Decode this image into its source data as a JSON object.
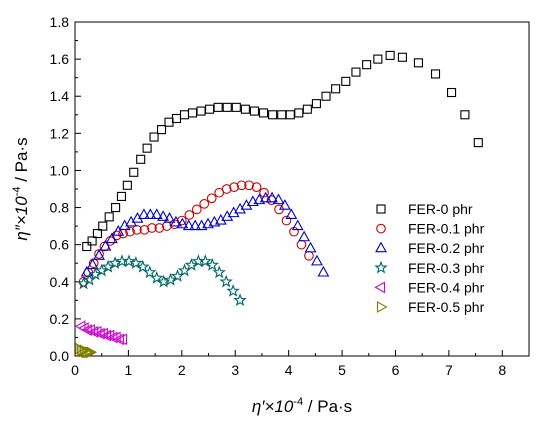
{
  "chart_data": {
    "type": "scatter",
    "xlabel": {
      "main": "η′×10",
      "sup": "-4",
      "unit": " / Pa·s"
    },
    "ylabel": {
      "main": "η″×10",
      "sup": "-4",
      "unit": " / Pa·s"
    },
    "xlim": [
      0,
      8.5
    ],
    "ylim": [
      0,
      1.8
    ],
    "xticks": [
      0,
      1,
      2,
      3,
      4,
      5,
      6,
      7,
      8
    ],
    "yticks": [
      0.0,
      0.2,
      0.4,
      0.6,
      0.8,
      1.0,
      1.2,
      1.4,
      1.6,
      1.8
    ],
    "xtick_labels": [
      "0",
      "1",
      "2",
      "3",
      "4",
      "5",
      "6",
      "7",
      "8"
    ],
    "ytick_labels": [
      "0.0",
      "0.2",
      "0.4",
      "0.6",
      "0.8",
      "1.0",
      "1.2",
      "1.4",
      "1.6",
      "1.8"
    ],
    "grid": false,
    "legend_position": "right",
    "series": [
      {
        "name": "FER-0 phr",
        "marker": "square",
        "color": "#000000",
        "points": [
          [
            0.22,
            0.59
          ],
          [
            0.32,
            0.62
          ],
          [
            0.42,
            0.66
          ],
          [
            0.52,
            0.7
          ],
          [
            0.64,
            0.75
          ],
          [
            0.76,
            0.8
          ],
          [
            0.87,
            0.86
          ],
          [
            0.98,
            0.92
          ],
          [
            1.1,
            0.99
          ],
          [
            1.23,
            1.06
          ],
          [
            1.35,
            1.12
          ],
          [
            1.48,
            1.18
          ],
          [
            1.62,
            1.22
          ],
          [
            1.76,
            1.26
          ],
          [
            1.9,
            1.28
          ],
          [
            2.05,
            1.3
          ],
          [
            2.2,
            1.31
          ],
          [
            2.36,
            1.32
          ],
          [
            2.52,
            1.33
          ],
          [
            2.68,
            1.34
          ],
          [
            2.85,
            1.34
          ],
          [
            3.02,
            1.34
          ],
          [
            3.19,
            1.33
          ],
          [
            3.36,
            1.32
          ],
          [
            3.53,
            1.31
          ],
          [
            3.7,
            1.3
          ],
          [
            3.87,
            1.3
          ],
          [
            4.03,
            1.3
          ],
          [
            4.19,
            1.31
          ],
          [
            4.35,
            1.33
          ],
          [
            4.52,
            1.36
          ],
          [
            4.7,
            1.4
          ],
          [
            4.88,
            1.44
          ],
          [
            5.07,
            1.48
          ],
          [
            5.26,
            1.53
          ],
          [
            5.46,
            1.57
          ],
          [
            5.67,
            1.6
          ],
          [
            5.9,
            1.62
          ],
          [
            6.13,
            1.61
          ],
          [
            6.43,
            1.58
          ],
          [
            6.75,
            1.52
          ],
          [
            7.05,
            1.42
          ],
          [
            7.3,
            1.3
          ],
          [
            7.55,
            1.15
          ]
        ]
      },
      {
        "name": "FER-0.1 phr",
        "marker": "circle",
        "color": "#cc0000",
        "points": [
          [
            0.16,
            0.4
          ],
          [
            0.25,
            0.45
          ],
          [
            0.35,
            0.5
          ],
          [
            0.45,
            0.55
          ],
          [
            0.55,
            0.59
          ],
          [
            0.66,
            0.62
          ],
          [
            0.78,
            0.65
          ],
          [
            0.9,
            0.66
          ],
          [
            1.03,
            0.67
          ],
          [
            1.16,
            0.68
          ],
          [
            1.3,
            0.68
          ],
          [
            1.44,
            0.69
          ],
          [
            1.58,
            0.69
          ],
          [
            1.72,
            0.7
          ],
          [
            1.86,
            0.71
          ],
          [
            2.0,
            0.73
          ],
          [
            2.14,
            0.76
          ],
          [
            2.28,
            0.79
          ],
          [
            2.42,
            0.82
          ],
          [
            2.56,
            0.85
          ],
          [
            2.7,
            0.88
          ],
          [
            2.84,
            0.9
          ],
          [
            2.98,
            0.91
          ],
          [
            3.12,
            0.92
          ],
          [
            3.26,
            0.92
          ],
          [
            3.4,
            0.91
          ],
          [
            3.54,
            0.88
          ],
          [
            3.68,
            0.84
          ],
          [
            3.82,
            0.79
          ],
          [
            3.96,
            0.73
          ],
          [
            4.1,
            0.67
          ],
          [
            4.24,
            0.6
          ],
          [
            4.38,
            0.54
          ]
        ]
      },
      {
        "name": "FER-0.2 phr",
        "marker": "triangle-up",
        "color": "#0000cc",
        "points": [
          [
            0.22,
            0.45
          ],
          [
            0.33,
            0.49
          ],
          [
            0.45,
            0.54
          ],
          [
            0.57,
            0.59
          ],
          [
            0.69,
            0.63
          ],
          [
            0.81,
            0.67
          ],
          [
            0.93,
            0.7
          ],
          [
            1.05,
            0.72
          ],
          [
            1.17,
            0.74
          ],
          [
            1.29,
            0.76
          ],
          [
            1.41,
            0.76
          ],
          [
            1.53,
            0.76
          ],
          [
            1.65,
            0.75
          ],
          [
            1.77,
            0.74
          ],
          [
            1.89,
            0.72
          ],
          [
            2.01,
            0.71
          ],
          [
            2.13,
            0.7
          ],
          [
            2.25,
            0.7
          ],
          [
            2.37,
            0.7
          ],
          [
            2.49,
            0.71
          ],
          [
            2.61,
            0.72
          ],
          [
            2.73,
            0.73
          ],
          [
            2.85,
            0.75
          ],
          [
            2.97,
            0.77
          ],
          [
            3.09,
            0.79
          ],
          [
            3.21,
            0.81
          ],
          [
            3.33,
            0.83
          ],
          [
            3.45,
            0.84
          ],
          [
            3.57,
            0.85
          ],
          [
            3.69,
            0.85
          ],
          [
            3.81,
            0.84
          ],
          [
            3.93,
            0.81
          ],
          [
            4.05,
            0.76
          ],
          [
            4.17,
            0.7
          ],
          [
            4.29,
            0.64
          ],
          [
            4.41,
            0.58
          ],
          [
            4.53,
            0.51
          ],
          [
            4.65,
            0.45
          ]
        ]
      },
      {
        "name": "FER-0.3 phr",
        "marker": "star",
        "color": "#006666",
        "points": [
          [
            0.16,
            0.39
          ],
          [
            0.27,
            0.41
          ],
          [
            0.38,
            0.44
          ],
          [
            0.5,
            0.46
          ],
          [
            0.62,
            0.48
          ],
          [
            0.75,
            0.5
          ],
          [
            0.88,
            0.51
          ],
          [
            1.01,
            0.51
          ],
          [
            1.14,
            0.5
          ],
          [
            1.27,
            0.48
          ],
          [
            1.4,
            0.45
          ],
          [
            1.53,
            0.42
          ],
          [
            1.66,
            0.4
          ],
          [
            1.79,
            0.41
          ],
          [
            1.92,
            0.43
          ],
          [
            2.05,
            0.46
          ],
          [
            2.18,
            0.49
          ],
          [
            2.31,
            0.51
          ],
          [
            2.44,
            0.51
          ],
          [
            2.57,
            0.49
          ],
          [
            2.7,
            0.45
          ],
          [
            2.83,
            0.4
          ],
          [
            2.96,
            0.35
          ],
          [
            3.09,
            0.3
          ]
        ]
      },
      {
        "name": "FER-0.4 phr",
        "marker": "triangle-left",
        "color": "#cc00cc",
        "points": [
          [
            0.12,
            0.16
          ],
          [
            0.18,
            0.15
          ],
          [
            0.24,
            0.14
          ],
          [
            0.3,
            0.14
          ],
          [
            0.36,
            0.13
          ],
          [
            0.42,
            0.13
          ],
          [
            0.48,
            0.12
          ],
          [
            0.54,
            0.12
          ],
          [
            0.6,
            0.11
          ],
          [
            0.66,
            0.11
          ],
          [
            0.72,
            0.1
          ],
          [
            0.78,
            0.1
          ],
          [
            0.84,
            0.09
          ],
          [
            0.9,
            0.09
          ]
        ]
      },
      {
        "name": "FER-0.5 phr",
        "marker": "triangle-right",
        "color": "#808000",
        "points": [
          [
            0.08,
            0.04
          ],
          [
            0.11,
            0.03
          ],
          [
            0.14,
            0.03
          ],
          [
            0.17,
            0.03
          ],
          [
            0.2,
            0.02
          ],
          [
            0.23,
            0.02
          ],
          [
            0.26,
            0.02
          ],
          [
            0.29,
            0.02
          ]
        ]
      }
    ]
  }
}
